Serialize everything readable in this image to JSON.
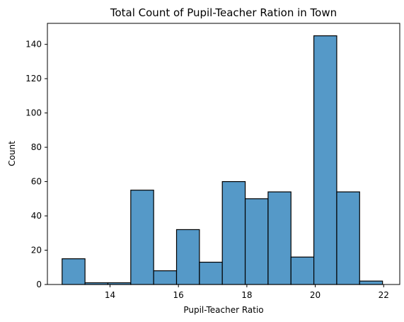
{
  "chart_data": {
    "type": "bar",
    "subtype": "histogram",
    "title": "Total Count of Pupil-Teacher Ration in Town",
    "xlabel": "Pupil-Teacher Ratio",
    "ylabel": "Count",
    "bar_color": "#5599c8",
    "edge_color": "#000000",
    "xlim": [
      12.17,
      22.47
    ],
    "ylim": [
      0,
      152.25
    ],
    "xticks": [
      14,
      16,
      18,
      20,
      22
    ],
    "yticks": [
      0,
      20,
      40,
      60,
      80,
      100,
      120,
      140
    ],
    "bin_start": 12.6,
    "bin_width": 0.669,
    "values": [
      15,
      1,
      1,
      55,
      8,
      32,
      13,
      60,
      50,
      54,
      16,
      145,
      54,
      2
    ],
    "grid": false
  }
}
